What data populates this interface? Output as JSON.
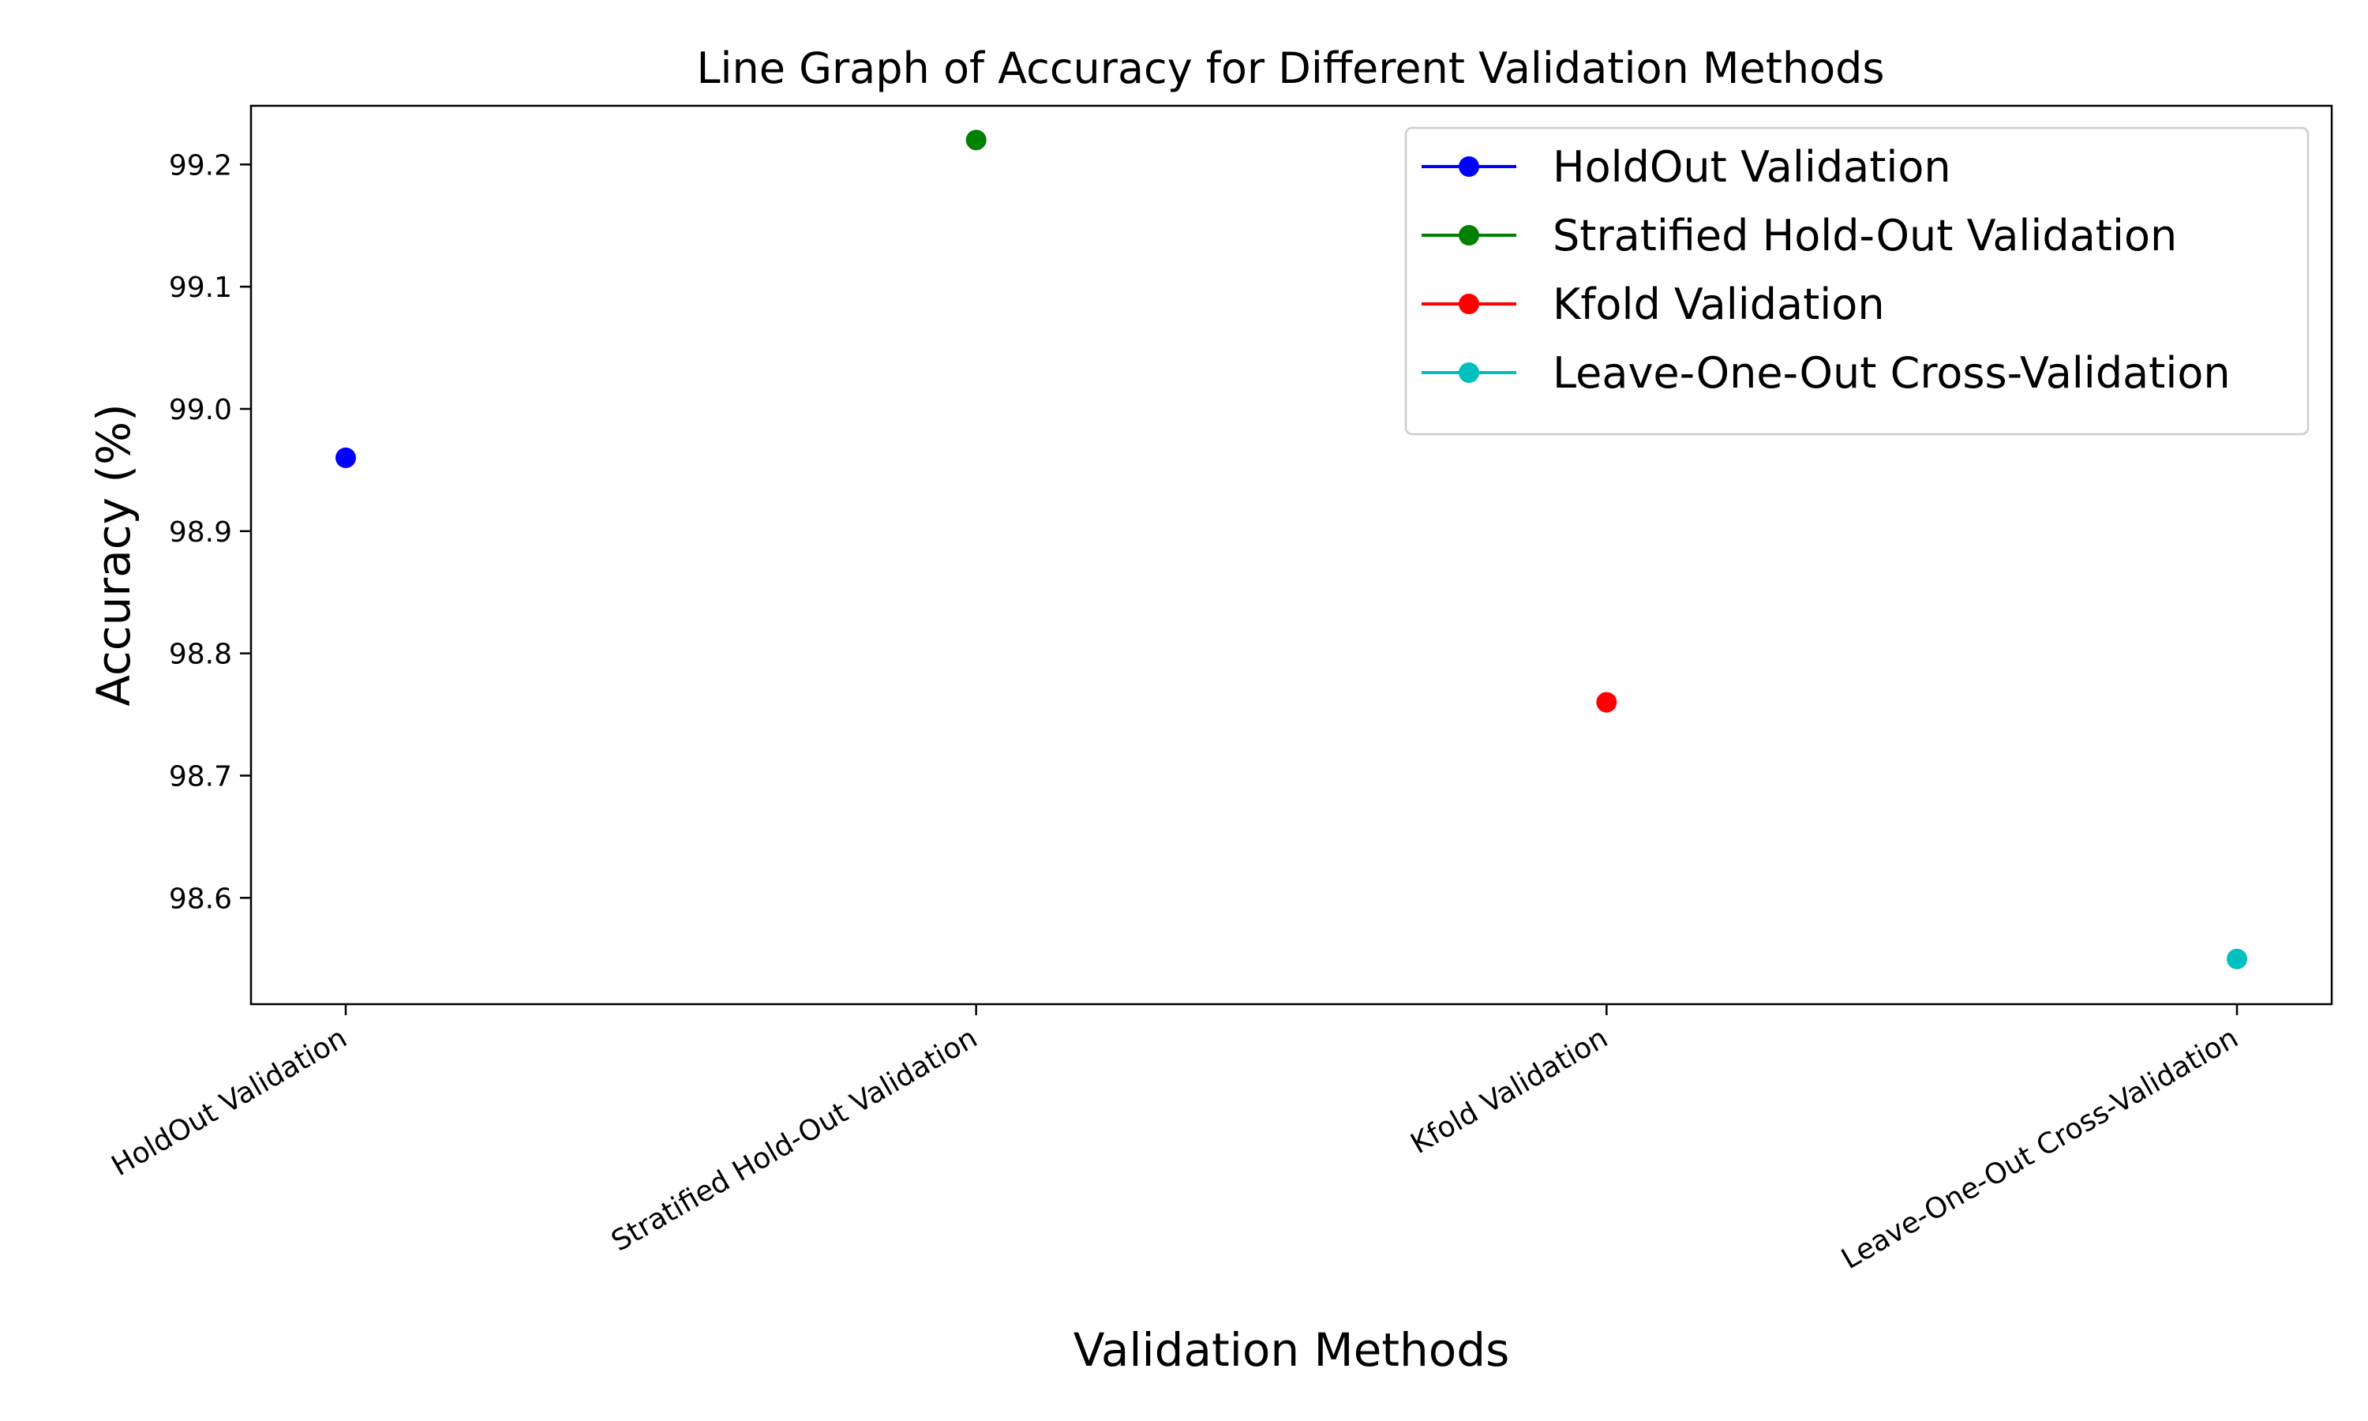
{
  "chart_data": {
    "type": "line",
    "title": "Line Graph of Accuracy for Different Validation Methods",
    "xlabel": "Validation Methods",
    "ylabel": "Accuracy (%)",
    "categories": [
      "HoldOut Validation",
      "Stratified Hold-Out Validation",
      "Kfold Validation",
      "Leave-One-Out Cross-Validation"
    ],
    "ylim": [
      98.513,
      99.248
    ],
    "yticks": [
      98.6,
      98.7,
      98.8,
      98.9,
      99.0,
      99.1,
      99.2
    ],
    "ytick_labels": [
      "98.6",
      "98.7",
      "98.8",
      "98.9",
      "99.0",
      "99.1",
      "99.2"
    ],
    "grid": false,
    "legend_position": "top-right",
    "series": [
      {
        "name": "HoldOut Validation",
        "color": "#0000ff",
        "values": [
          98.96,
          null,
          null,
          null
        ]
      },
      {
        "name": "Stratified Hold-Out Validation",
        "color": "#008000",
        "values": [
          null,
          99.22,
          null,
          null
        ]
      },
      {
        "name": "Kfold Validation",
        "color": "#ff0000",
        "values": [
          null,
          null,
          98.76,
          null
        ]
      },
      {
        "name": "Leave-One-Out Cross-Validation",
        "color": "#00bfbf",
        "values": [
          null,
          null,
          null,
          98.55
        ]
      }
    ]
  }
}
